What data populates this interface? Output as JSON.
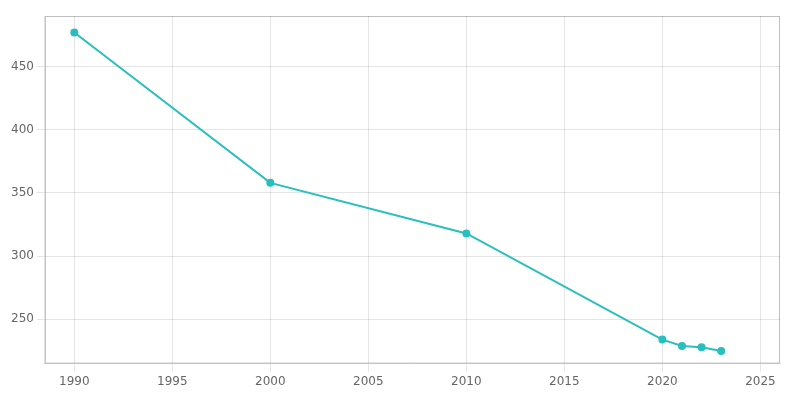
{
  "chart_data": {
    "type": "line",
    "x": [
      1990,
      2000,
      2010,
      2020,
      2021,
      2022,
      2023
    ],
    "values": [
      477,
      358,
      318,
      234,
      229,
      228,
      225
    ],
    "color": "#2abfbf",
    "marker": "circle",
    "xlim": [
      1988.5,
      2026
    ],
    "ylim": [
      215,
      490
    ],
    "xticks": [
      1990,
      1995,
      2000,
      2005,
      2010,
      2015,
      2020,
      2025
    ],
    "yticks": [
      250,
      300,
      350,
      400,
      450
    ],
    "grid": true
  }
}
